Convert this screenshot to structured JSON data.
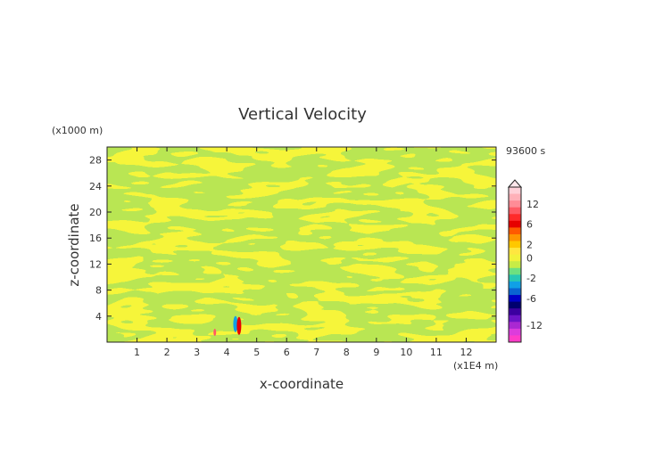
{
  "chart_data": {
    "type": "heatmap",
    "title": "Vertical Velocity",
    "time_label": "93600 s",
    "xlabel": "x-coordinate",
    "ylabel": "z-coordinate",
    "x_unit": "(x1E4 m)",
    "y_unit": "(x1000 m)",
    "xlim": [
      0,
      13
    ],
    "ylim": [
      0,
      30
    ],
    "x_ticks": [
      1,
      2,
      3,
      4,
      5,
      6,
      7,
      8,
      9,
      10,
      11,
      12
    ],
    "y_ticks": [
      4,
      8,
      12,
      16,
      20,
      24,
      28
    ],
    "field_pattern": "alternating yellow (slightly positive) and green (slightly negative) wave bands filling the domain",
    "anomaly": {
      "x": 4.35,
      "z": 2.5,
      "description": "localized strong red/blue cell near the surface"
    },
    "colorbar": {
      "tick_labels": [
        "12",
        "6",
        "2",
        "0",
        "-2",
        "-6",
        "-12"
      ],
      "bins": [
        {
          "label": "",
          "color": "#ffd0d8"
        },
        {
          "label": "",
          "color": "#ffb0b8"
        },
        {
          "label": "12",
          "color": "#ff8c96"
        },
        {
          "label": "",
          "color": "#ff5a64"
        },
        {
          "label": "",
          "color": "#ff2a2a"
        },
        {
          "label": "6",
          "color": "#e60000"
        },
        {
          "label": "",
          "color": "#ff5a00"
        },
        {
          "label": "",
          "color": "#ff9600"
        },
        {
          "label": "2",
          "color": "#ffc800"
        },
        {
          "label": "",
          "color": "#ffe640"
        },
        {
          "label": "0",
          "color": "#f2f23a"
        },
        {
          "label": "",
          "color": "#c8ec46"
        },
        {
          "label": "",
          "color": "#6ee080"
        },
        {
          "label": "-2",
          "color": "#28c8b4"
        },
        {
          "label": "",
          "color": "#10a0e6"
        },
        {
          "label": "",
          "color": "#0a64d2"
        },
        {
          "label": "-6",
          "color": "#0000c8"
        },
        {
          "label": "",
          "color": "#00006e"
        },
        {
          "label": "",
          "color": "#3c00a0"
        },
        {
          "label": "",
          "color": "#6e14c8"
        },
        {
          "label": "-12",
          "color": "#aa28d2"
        },
        {
          "label": "",
          "color": "#dc3cdc"
        },
        {
          "label": "",
          "color": "#ff3cc8"
        }
      ]
    }
  },
  "colors": {
    "positive_band": "#f6f53a",
    "negative_band": "#b9e653",
    "axis": "#222222"
  }
}
